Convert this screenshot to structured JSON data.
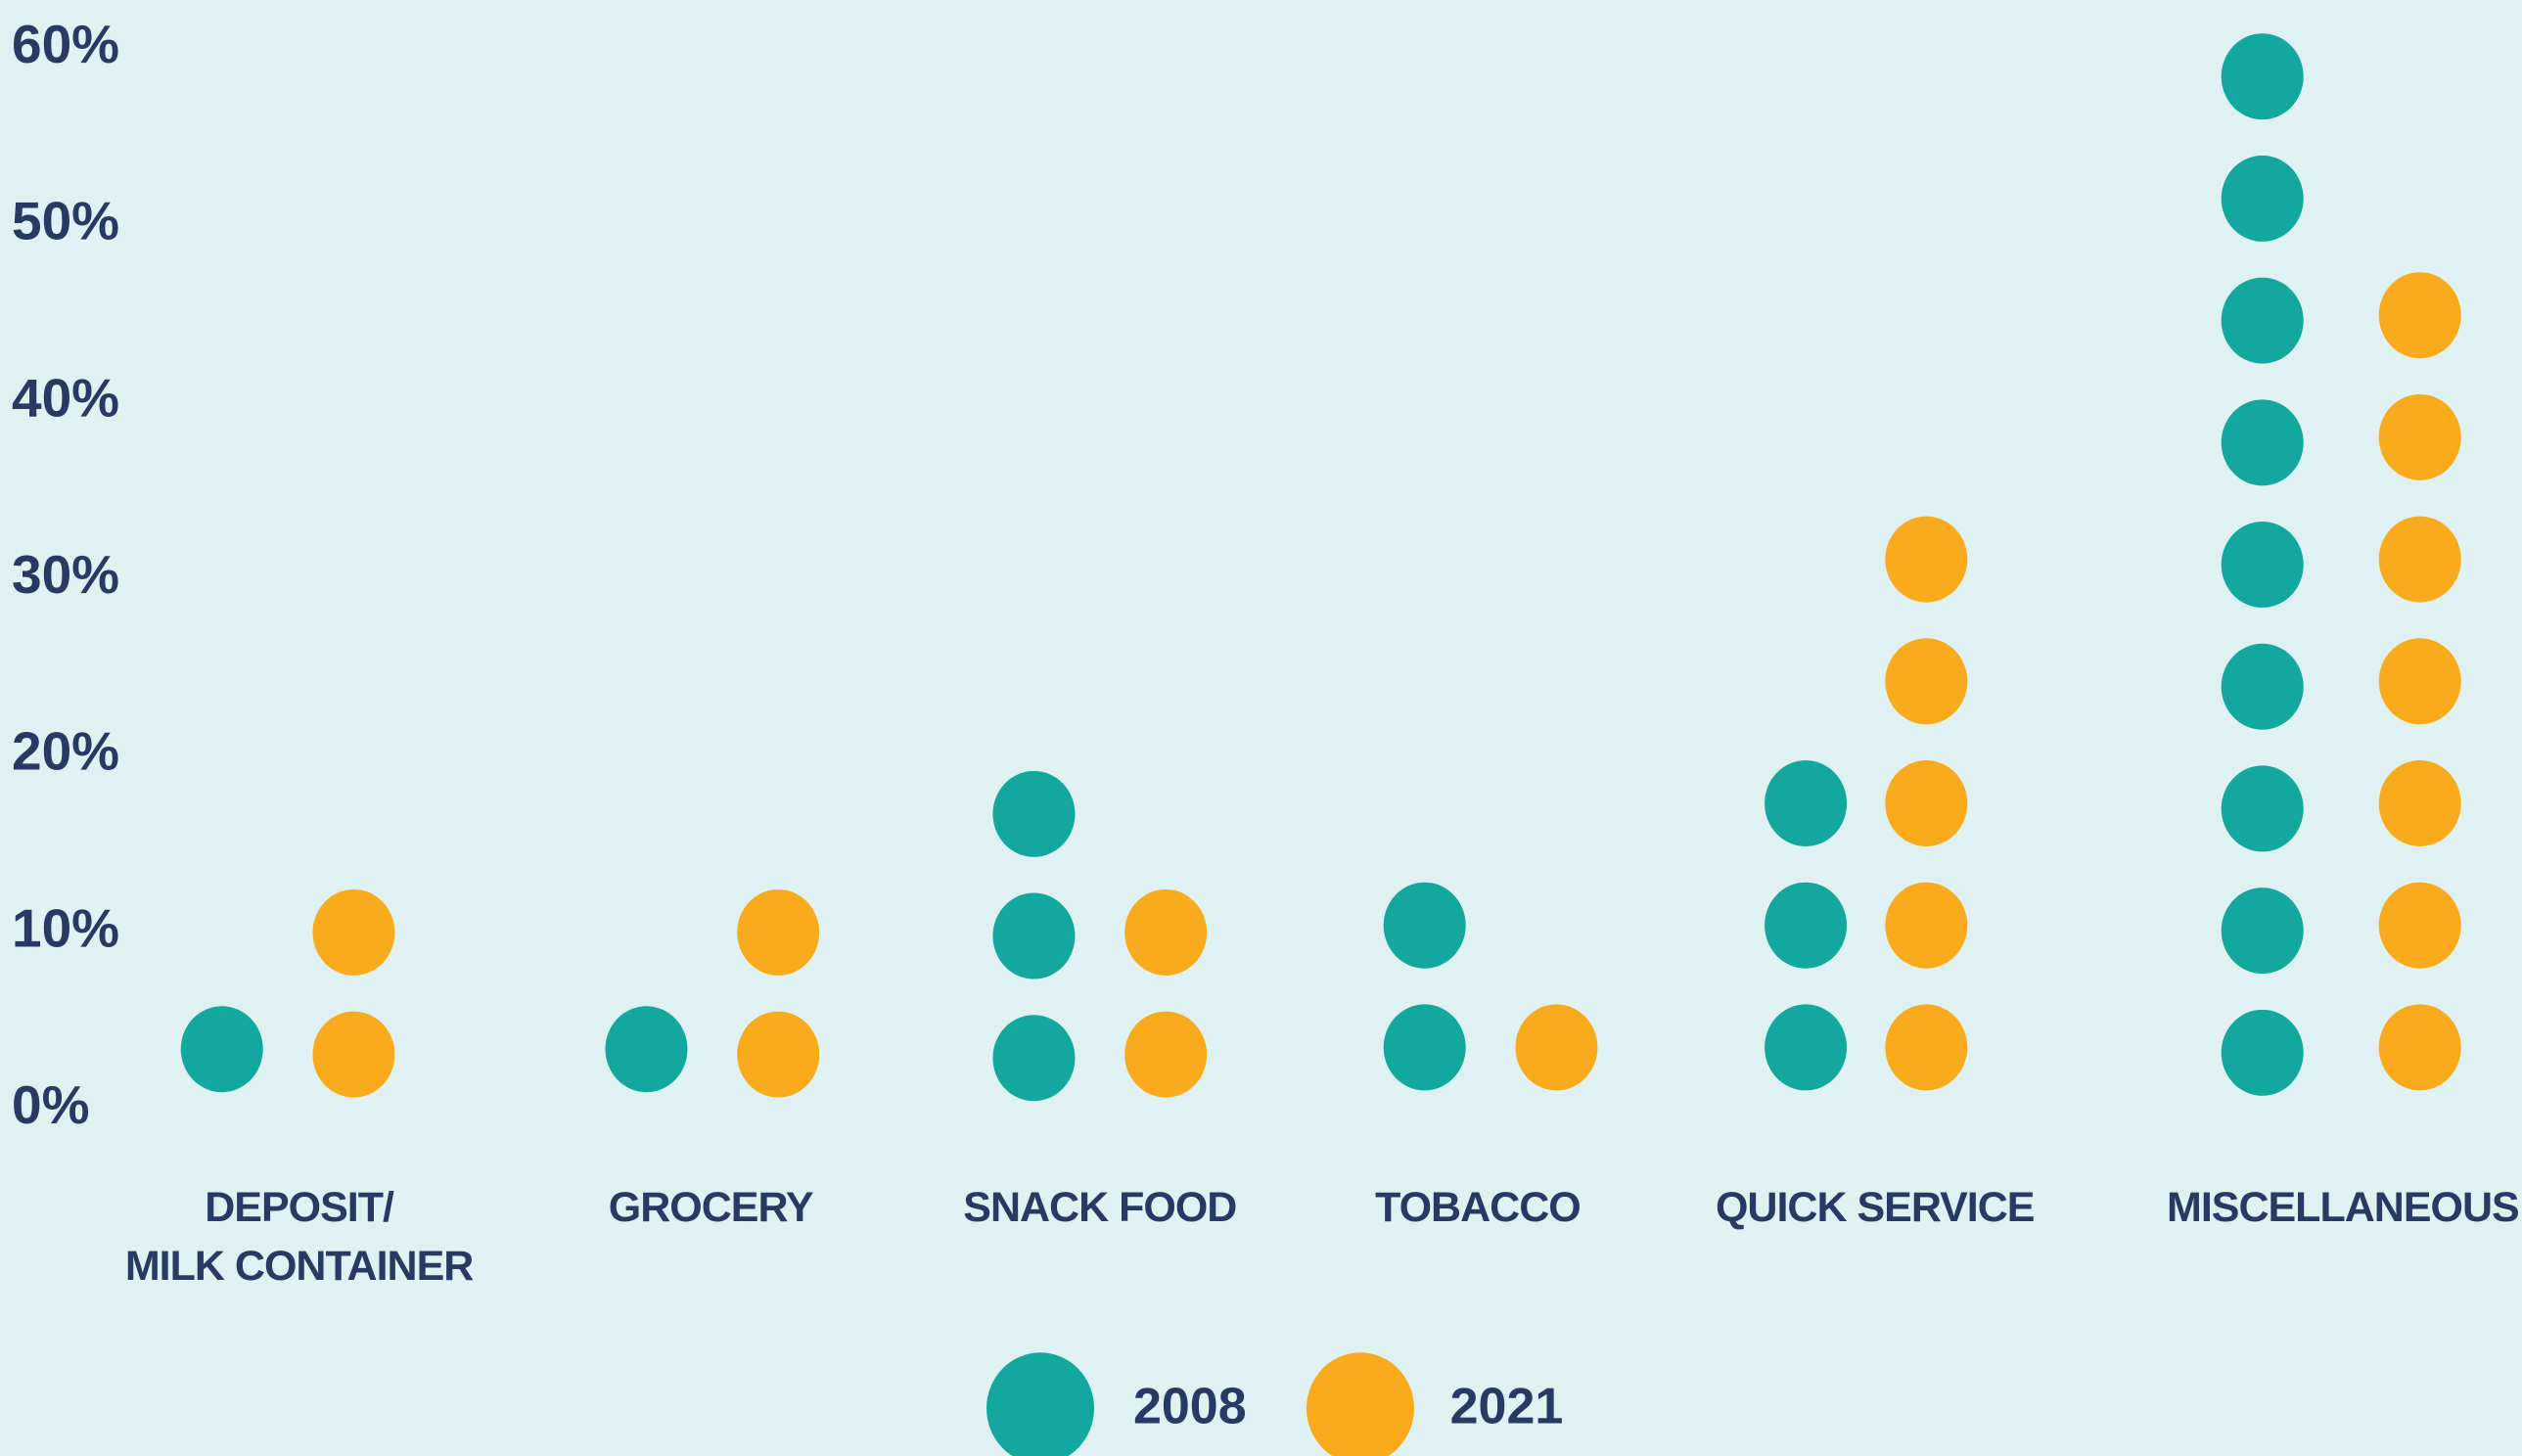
{
  "chart_data": {
    "type": "dot",
    "categories": [
      "DEPOSIT/\nMILK CONTAINER",
      "GROCERY",
      "SNACK FOOD",
      "TOBACCO",
      "QUICK SERVICE",
      "MISCELLANEOUS"
    ],
    "series": [
      {
        "name": "2008",
        "color": "#12a89d",
        "values": [
          3.4,
          3.4,
          16.7,
          10.4,
          17.3,
          58.4
        ]
      },
      {
        "name": "2021",
        "color": "#f9ab1e",
        "values": [
          10.0,
          10.0,
          10.0,
          3.5,
          31.1,
          44.9
        ]
      }
    ],
    "ylim": [
      0,
      60
    ],
    "yticks": [
      {
        "value": 0,
        "label": "0%"
      },
      {
        "value": 10,
        "label": "10%"
      },
      {
        "value": 20,
        "label": "20%"
      },
      {
        "value": 30,
        "label": "30%"
      },
      {
        "value": 40,
        "label": "40%"
      },
      {
        "value": 50,
        "label": "50%"
      },
      {
        "value": 60,
        "label": "60%"
      }
    ],
    "legend": "bottom"
  }
}
